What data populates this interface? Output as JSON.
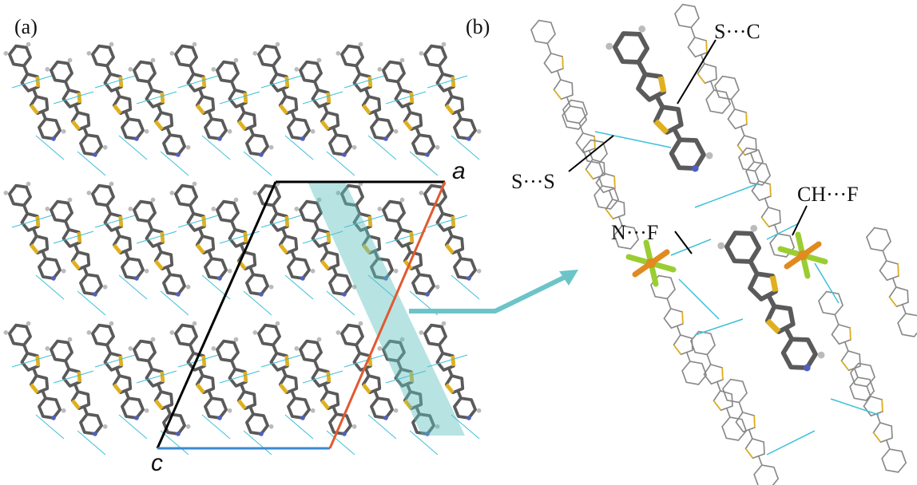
{
  "panels": {
    "a": {
      "label": "(a)",
      "axes": [
        "a",
        "c"
      ]
    },
    "b": {
      "label": "(b)",
      "interactions": [
        "S···C",
        "S···S",
        "CH···F",
        "N···F"
      ]
    }
  }
}
